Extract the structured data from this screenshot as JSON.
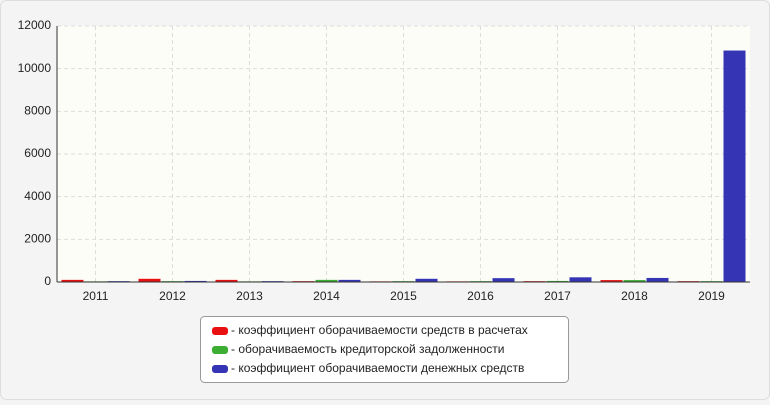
{
  "chart_data": {
    "type": "bar",
    "categories": [
      "2011",
      "2012",
      "2013",
      "2014",
      "2015",
      "2016",
      "2017",
      "2018",
      "2019"
    ],
    "series": [
      {
        "name": "- коэффициент оборачиваемости средств в расчетах",
        "color": "#e81010",
        "values": [
          100,
          150,
          100,
          40,
          30,
          30,
          40,
          90,
          40
        ]
      },
      {
        "name": "- оборачиваемость кредиторской задолженности",
        "color": "#3cae34",
        "values": [
          30,
          40,
          30,
          100,
          40,
          40,
          50,
          90,
          40
        ]
      },
      {
        "name": "- коэффициент оборачиваемости денежных средств",
        "color": "#3434b4",
        "values": [
          40,
          50,
          40,
          100,
          150,
          180,
          220,
          190,
          10850
        ]
      }
    ],
    "ylim": [
      0,
      12000
    ],
    "yticks": [
      0,
      2000,
      4000,
      6000,
      8000,
      10000,
      12000
    ],
    "grid": true,
    "legend": "bottom"
  }
}
